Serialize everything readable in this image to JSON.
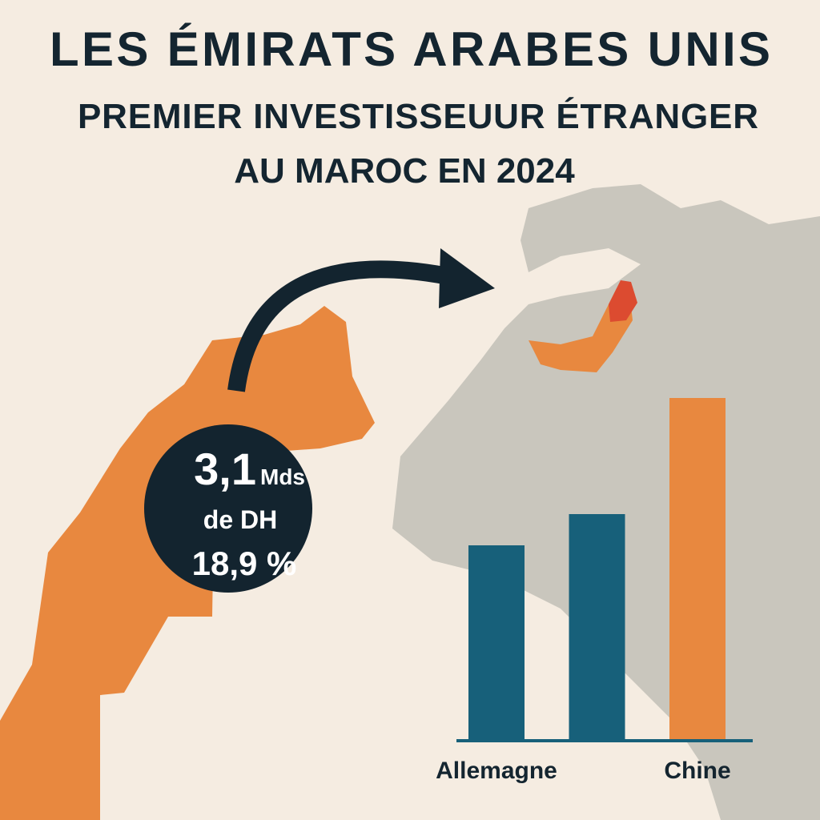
{
  "title": "LES ÉMIRATS ARABES UNIS",
  "subtitle": [
    "PREMIER INVESTISSEUUR ÉTRANGER",
    "AU MAROC EN 2024"
  ],
  "callout": {
    "amount": "3,1",
    "unit": "Mds",
    "currency": "de DH",
    "share": "18,9 %"
  },
  "chart_data": {
    "type": "bar",
    "categories": [
      "Allemagne",
      null,
      "Chine"
    ],
    "series": [
      {
        "values": [
          244,
          283,
          428
        ],
        "colors": [
          "#17607a",
          "#17607a",
          "#e8883f"
        ]
      }
    ]
  }
}
